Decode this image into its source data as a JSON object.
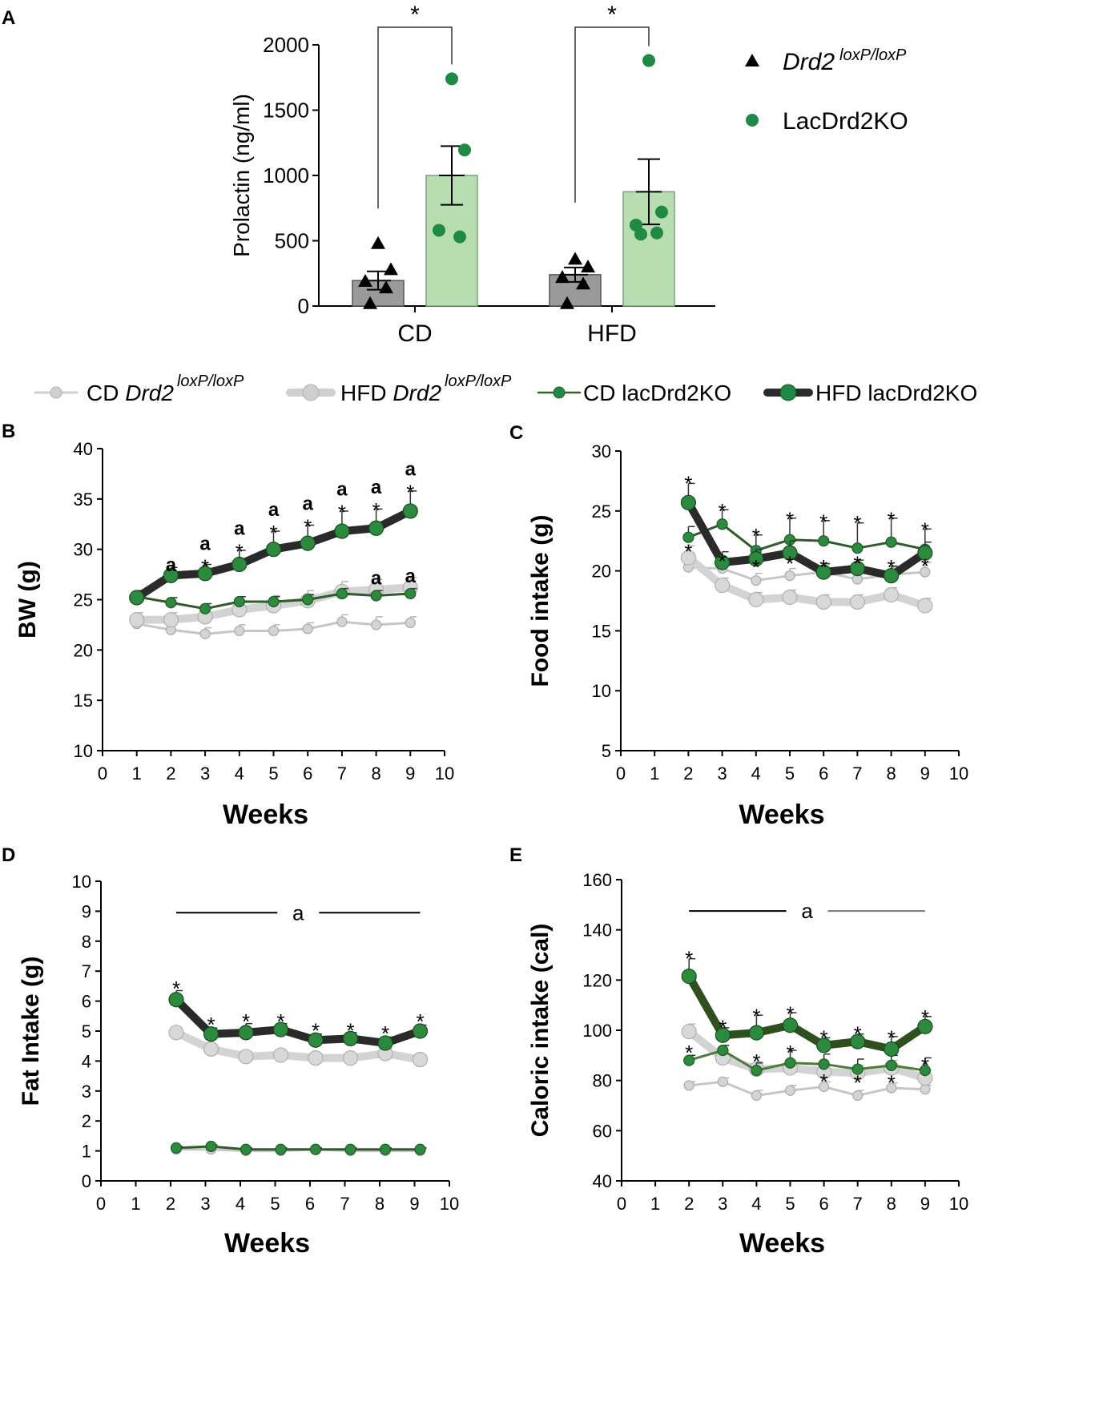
{
  "colors": {
    "black": "#000000",
    "green": "#1e8a46",
    "green_dark": "#3a5f2a",
    "green_bar": "#b7ddb0",
    "gray_bar": "#9a9a9a",
    "gray_light": "#cfcfcf",
    "gray_mid": "#bdbdbd"
  },
  "legend_top": [
    {
      "prefix": "CD ",
      "italic": "Drd2",
      "sup": "loxP/loxP"
    },
    {
      "prefix": "HFD ",
      "italic": "Drd2",
      "sup": "loxP/loxP"
    },
    {
      "prefix": "CD lacDrd2KO",
      "italic": "",
      "sup": ""
    },
    {
      "prefix": "HFD lacDrd2KO",
      "italic": "",
      "sup": ""
    }
  ],
  "chart_data": [
    {
      "panel": "A",
      "type": "bar",
      "ylabel": "Prolactin (ng/ml)",
      "ylim": [
        0,
        2000
      ],
      "yticks": [
        0,
        500,
        1000,
        1500,
        2000
      ],
      "categories": [
        "CD",
        "HFD"
      ],
      "significance": [
        "*",
        "*"
      ],
      "legend": [
        {
          "italic": "Drd2",
          "sup": "loxP/loxP",
          "marker": "triangle"
        },
        {
          "text": "LacDrd2KO",
          "marker": "circle"
        }
      ],
      "series": [
        {
          "name": "Drd2 loxP/loxP",
          "means": [
            195,
            240
          ],
          "sem": [
            70,
            55
          ],
          "points": [
            [
              480,
              280,
              190,
              140,
              20
            ],
            [
              360,
              300,
              220,
              170,
              20
            ]
          ]
        },
        {
          "name": "LacDrd2KO",
          "means": [
            1000,
            875
          ],
          "sem": [
            225,
            250
          ],
          "points": [
            [
              1740,
              1195,
              580,
              530
            ],
            [
              1880,
              720,
              620,
              560,
              550
            ]
          ]
        }
      ]
    },
    {
      "panel": "B",
      "type": "line",
      "ylabel": "BW (g)",
      "xlabel": "Weeks",
      "xlim": [
        0,
        10
      ],
      "ylim": [
        10,
        40
      ],
      "xticks": [
        0,
        1,
        2,
        3,
        4,
        5,
        6,
        7,
        8,
        9,
        10
      ],
      "yticks": [
        10,
        15,
        20,
        25,
        30,
        35,
        40
      ],
      "x": [
        1,
        2,
        3,
        4,
        5,
        6,
        7,
        8,
        9
      ],
      "series": [
        {
          "name": "CD Drd2 loxP/loxP",
          "values": [
            22.6,
            22.0,
            21.6,
            21.9,
            21.9,
            22.1,
            22.8,
            22.5,
            22.7
          ],
          "err": [
            0.6,
            0.5,
            0.6,
            0.6,
            0.6,
            0.6,
            0.7,
            0.8,
            0.6
          ]
        },
        {
          "name": "HFD Drd2 loxP/loxP",
          "values": [
            23.0,
            23.0,
            23.3,
            24.0,
            24.4,
            24.9,
            25.8,
            26.0,
            26.2
          ],
          "err": [
            0.7,
            0.7,
            0.8,
            0.9,
            1.0,
            1.0,
            1.0,
            1.0,
            1.0
          ]
        },
        {
          "name": "CD lacDrd2KO",
          "values": [
            25.3,
            24.7,
            24.1,
            24.8,
            24.8,
            25.0,
            25.6,
            25.4,
            25.6
          ],
          "err": [
            0.5,
            0.5,
            0.5,
            0.5,
            0.5,
            0.5,
            0.5,
            0.5,
            0.5
          ]
        },
        {
          "name": "HFD lacDrd2KO",
          "values": [
            25.2,
            27.4,
            27.6,
            28.5,
            30.0,
            30.6,
            31.8,
            32.1,
            33.8
          ],
          "err": [
            0.7,
            0.8,
            0.9,
            1.4,
            1.8,
            1.8,
            2.0,
            1.9,
            2.0
          ]
        }
      ],
      "annotations": [
        {
          "x": 2,
          "lines": [
            "a"
          ],
          "y": 28.3
        },
        {
          "x": 3,
          "lines": [
            "a",
            "*"
          ],
          "y": 28.5
        },
        {
          "x": 4,
          "lines": [
            "a",
            "*"
          ],
          "y": 30.0
        },
        {
          "x": 5,
          "lines": [
            "a",
            "*"
          ],
          "y": 31.9
        },
        {
          "x": 6,
          "lines": [
            "a",
            "*"
          ],
          "y": 32.5
        },
        {
          "x": 7,
          "lines": [
            "a",
            "*"
          ],
          "y": 33.9
        },
        {
          "x": 8,
          "lines": [
            "a",
            "*"
          ],
          "y": 34.1
        },
        {
          "x": 9,
          "lines": [
            "a",
            "*"
          ],
          "y": 35.9
        },
        {
          "x": 8,
          "lines": [
            "a"
          ],
          "y": 27.0
        },
        {
          "x": 9,
          "lines": [
            "a"
          ],
          "y": 27.2
        }
      ]
    },
    {
      "panel": "C",
      "type": "line",
      "ylabel": "Food intake (g)",
      "xlabel": "Weeks",
      "xlim": [
        0,
        10
      ],
      "ylim": [
        5,
        30
      ],
      "xticks": [
        0,
        1,
        2,
        3,
        4,
        5,
        6,
        7,
        8,
        9,
        10
      ],
      "yticks": [
        5,
        10,
        15,
        20,
        25,
        30
      ],
      "x": [
        2,
        3,
        4,
        5,
        6,
        7,
        8,
        9
      ],
      "series": [
        {
          "name": "CD Drd2 loxP/loxP",
          "values": [
            20.3,
            20.2,
            19.2,
            19.6,
            19.9,
            19.3,
            19.7,
            19.9
          ],
          "err": [
            1.2,
            0.6,
            0.6,
            0.6,
            0.7,
            0.6,
            0.6,
            0.8
          ]
        },
        {
          "name": "HFD Drd2 loxP/loxP",
          "values": [
            21.1,
            18.8,
            17.6,
            17.8,
            17.4,
            17.4,
            18.0,
            17.1
          ],
          "err": [
            1.0,
            0.6,
            0.6,
            0.6,
            0.6,
            0.6,
            0.6,
            0.6
          ]
        },
        {
          "name": "CD lacDrd2KO",
          "values": [
            22.8,
            23.9,
            21.7,
            22.6,
            22.5,
            21.9,
            22.4,
            21.8
          ],
          "err": [
            0.9,
            1.2,
            1.3,
            1.8,
            1.7,
            2.1,
            2.0,
            1.7
          ]
        },
        {
          "name": "HFD lacDrd2KO",
          "values": [
            25.7,
            20.7,
            21.0,
            21.5,
            19.9,
            20.2,
            19.6,
            21.5
          ],
          "err": [
            1.6,
            0.9,
            0.8,
            1.0,
            0.7,
            0.7,
            0.8,
            0.9
          ]
        }
      ],
      "annotations": [
        {
          "x": 2,
          "lines": [
            "*"
          ],
          "y": 27.5
        },
        {
          "x": 3,
          "lines": [
            "*"
          ],
          "y": 25.2
        },
        {
          "x": 4,
          "lines": [
            "*"
          ],
          "y": 23.1
        },
        {
          "x": 5,
          "lines": [
            "*"
          ],
          "y": 24.5
        },
        {
          "x": 6,
          "lines": [
            "*"
          ],
          "y": 24.3
        },
        {
          "x": 7,
          "lines": [
            "*"
          ],
          "y": 24.2
        },
        {
          "x": 8,
          "lines": [
            "*"
          ],
          "y": 24.5
        },
        {
          "x": 9,
          "lines": [
            "*"
          ],
          "y": 23.6
        },
        {
          "x": 2,
          "lines": [
            "*"
          ],
          "y": 21.8
        },
        {
          "x": 3,
          "lines": [
            "*"
          ],
          "y": 21.0
        },
        {
          "x": 4,
          "lines": [
            "*"
          ],
          "y": 20.5
        },
        {
          "x": 5,
          "lines": [
            "*"
          ],
          "y": 20.8
        },
        {
          "x": 6,
          "lines": [
            "*"
          ],
          "y": 20.5
        },
        {
          "x": 7,
          "lines": [
            "*"
          ],
          "y": 20.8
        },
        {
          "x": 8,
          "lines": [
            "*"
          ],
          "y": 20.5
        },
        {
          "x": 9,
          "lines": [
            "*"
          ],
          "y": 20.6
        }
      ]
    },
    {
      "panel": "D",
      "type": "line",
      "ylabel": "Fat Intake (g)",
      "xlabel": "Weeks",
      "xlim": [
        0,
        10
      ],
      "ylim": [
        0,
        10
      ],
      "xticks": [
        0,
        1,
        2,
        3,
        4,
        5,
        6,
        7,
        8,
        9,
        10
      ],
      "yticks": [
        0,
        1,
        2,
        3,
        4,
        5,
        6,
        7,
        8,
        9,
        10
      ],
      "x": [
        2,
        3,
        4,
        5,
        6,
        7,
        8,
        9
      ],
      "series": [
        {
          "name": "CD Drd2 loxP/loxP",
          "values": [
            1.05,
            1.05,
            1.0,
            1.0,
            1.05,
            1.0,
            1.0,
            1.0
          ],
          "err": [
            0.05,
            0.05,
            0.05,
            0.05,
            0.05,
            0.05,
            0.05,
            0.05
          ]
        },
        {
          "name": "HFD Drd2 loxP/loxP",
          "values": [
            4.95,
            4.4,
            4.15,
            4.2,
            4.1,
            4.1,
            4.25,
            4.05
          ],
          "err": [
            0.15,
            0.15,
            0.15,
            0.15,
            0.15,
            0.15,
            0.15,
            0.15
          ]
        },
        {
          "name": "CD lacDrd2KO",
          "values": [
            1.1,
            1.15,
            1.05,
            1.05,
            1.05,
            1.05,
            1.05,
            1.05
          ],
          "err": [
            0.05,
            0.05,
            0.05,
            0.05,
            0.05,
            0.05,
            0.05,
            0.05
          ]
        },
        {
          "name": "HFD lacDrd2KO",
          "values": [
            6.05,
            4.9,
            4.95,
            5.05,
            4.7,
            4.75,
            4.6,
            5.0
          ],
          "err": [
            0.3,
            0.2,
            0.3,
            0.2,
            0.2,
            0.2,
            0.2,
            0.2
          ]
        }
      ],
      "bracket": {
        "x1": 2,
        "x2": 9,
        "y": 8.95,
        "label": "a"
      },
      "annotations": [
        {
          "x": 2,
          "lines": [
            "*"
          ],
          "y": 6.5
        },
        {
          "x": 3,
          "lines": [
            "*"
          ],
          "y": 5.3
        },
        {
          "x": 4,
          "lines": [
            "*"
          ],
          "y": 5.4
        },
        {
          "x": 5,
          "lines": [
            "*"
          ],
          "y": 5.4
        },
        {
          "x": 6,
          "lines": [
            "*"
          ],
          "y": 5.1
        },
        {
          "x": 7,
          "lines": [
            "*"
          ],
          "y": 5.1
        },
        {
          "x": 8,
          "lines": [
            "*"
          ],
          "y": 5.0
        },
        {
          "x": 9,
          "lines": [
            "*"
          ],
          "y": 5.4
        }
      ]
    },
    {
      "panel": "E",
      "type": "line",
      "ylabel": "Caloric intake (cal)",
      "xlabel": "Weeks",
      "xlim": [
        0,
        10
      ],
      "ylim": [
        40,
        160
      ],
      "xticks": [
        0,
        1,
        2,
        3,
        4,
        5,
        6,
        7,
        8,
        9,
        10
      ],
      "yticks": [
        40,
        60,
        80,
        100,
        120,
        140,
        160
      ],
      "x": [
        2,
        3,
        4,
        5,
        6,
        7,
        8,
        9
      ],
      "series": [
        {
          "name": "CD Drd2 loxP/loxP",
          "values": [
            78,
            79.5,
            74,
            76,
            77.5,
            74,
            77,
            76.5
          ],
          "err": [
            1.5,
            1.5,
            2,
            2,
            2,
            2,
            2,
            1.5
          ]
        },
        {
          "name": "HFD Drd2 loxP/loxP",
          "values": [
            99.5,
            89,
            84.5,
            85,
            83.5,
            83,
            85,
            81
          ],
          "err": [
            3,
            3,
            3,
            3,
            3,
            3,
            3,
            3
          ]
        },
        {
          "name": "CD lacDrd2KO",
          "values": [
            88,
            92,
            84,
            87,
            86.5,
            84.5,
            86,
            84
          ],
          "err": [
            2,
            2,
            3,
            5,
            4,
            4,
            4,
            5
          ]
        },
        {
          "name": "HFD lacDrd2KO",
          "values": [
            121.5,
            98,
            99,
            102,
            94,
            95.5,
            92.5,
            101.5
          ],
          "err": [
            7,
            3,
            7,
            5,
            3,
            3,
            5,
            4
          ]
        }
      ],
      "bracket": {
        "x1": 2,
        "x2": 9,
        "y": 147.5,
        "label": "a"
      },
      "annotations": [
        {
          "x": 2,
          "lines": [
            "*"
          ],
          "y": 129.5
        },
        {
          "x": 3,
          "lines": [
            "*"
          ],
          "y": 102
        },
        {
          "x": 4,
          "lines": [
            "*"
          ],
          "y": 106.5
        },
        {
          "x": 5,
          "lines": [
            "*"
          ],
          "y": 107.5
        },
        {
          "x": 6,
          "lines": [
            "*"
          ],
          "y": 98
        },
        {
          "x": 7,
          "lines": [
            "*"
          ],
          "y": 99.5
        },
        {
          "x": 8,
          "lines": [
            "*"
          ],
          "y": 98
        },
        {
          "x": 9,
          "lines": [
            "*"
          ],
          "y": 106
        },
        {
          "x": 2,
          "lines": [
            "*"
          ],
          "y": 92
        },
        {
          "x": 4,
          "lines": [
            "*"
          ],
          "y": 88.5
        },
        {
          "x": 5,
          "lines": [
            "*"
          ],
          "y": 92
        },
        {
          "x": 6,
          "lines": [
            "*"
          ],
          "y": 80.5
        },
        {
          "x": 7,
          "lines": [
            "*"
          ],
          "y": 80
        },
        {
          "x": 8,
          "lines": [
            "*"
          ],
          "y": 80
        },
        {
          "x": 9,
          "lines": [
            "*"
          ],
          "y": 87
        }
      ]
    }
  ]
}
